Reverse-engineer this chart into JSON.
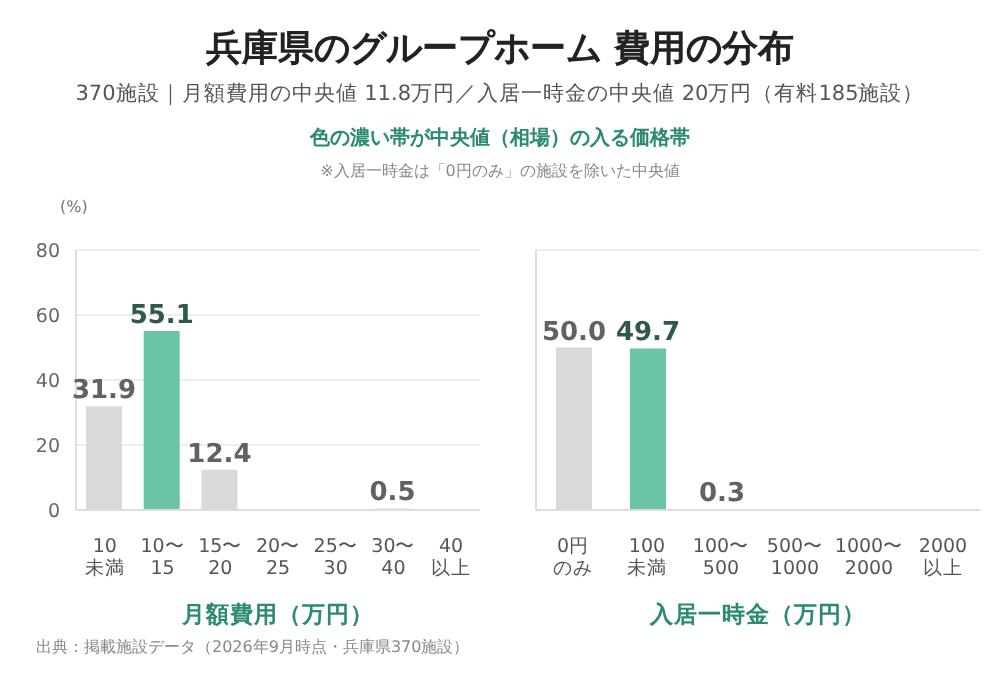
{
  "chart_data": [
    {
      "type": "bar",
      "title": "兵庫県のグループホーム 費用の分布",
      "subtitle": "370施設｜月額費用の中央値 11.8万円／入居一時金の中央値 20万円（有料185施設）",
      "annotations": [
        "色の濃い帯が中央値（相場）の入る価格帯",
        "※入居一時金は「0円のみ」の施設を除いた中央値",
        "出典：掲載施設データ（2026年9月時点・兵庫県370施設）"
      ],
      "ylabel": "(%)",
      "xlabel": "月額費用（万円）",
      "categories": [
        "10\n未満",
        "10〜\n15",
        "15〜\n20",
        "20〜\n25",
        "25〜\n30",
        "30〜\n40",
        "40\n以上"
      ],
      "values": [
        31.9,
        55.1,
        12.4,
        0,
        0,
        0.5,
        0
      ],
      "value_labels": [
        "31.9",
        "55.1",
        "12.4",
        null,
        null,
        "0.5",
        null
      ],
      "colors": [
        "#d9d9d9",
        "#6cc4a8",
        "#d9d9d9",
        "#d9d9d9",
        "#d9d9d9",
        "#d9d9d9",
        "#d9d9d9"
      ],
      "ylim": [
        0,
        80
      ],
      "yticks": [
        0,
        20,
        40,
        60,
        80
      ],
      "grid": "y",
      "legend": false
    },
    {
      "type": "bar",
      "xlabel": "入居一時金（万円）",
      "categories": [
        "0円のみ",
        "100\n未満",
        "100〜\n500",
        "500〜\n1000",
        "1000〜\n2000",
        "2000\n以上"
      ],
      "values": [
        50.0,
        49.7,
        0.3,
        0,
        0,
        0
      ],
      "value_labels": [
        "50.0",
        "49.7",
        "0.3",
        null,
        null,
        null
      ],
      "colors": [
        "#d9d9d9",
        "#6cc4a8",
        "#d9d9d9",
        "#d9d9d9",
        "#d9d9d9",
        "#d9d9d9"
      ],
      "ylim": [
        0,
        80
      ],
      "yticks": [
        0,
        20,
        40,
        60,
        80
      ],
      "grid": "y",
      "tick_labels": "x",
      "legend": false
    }
  ]
}
